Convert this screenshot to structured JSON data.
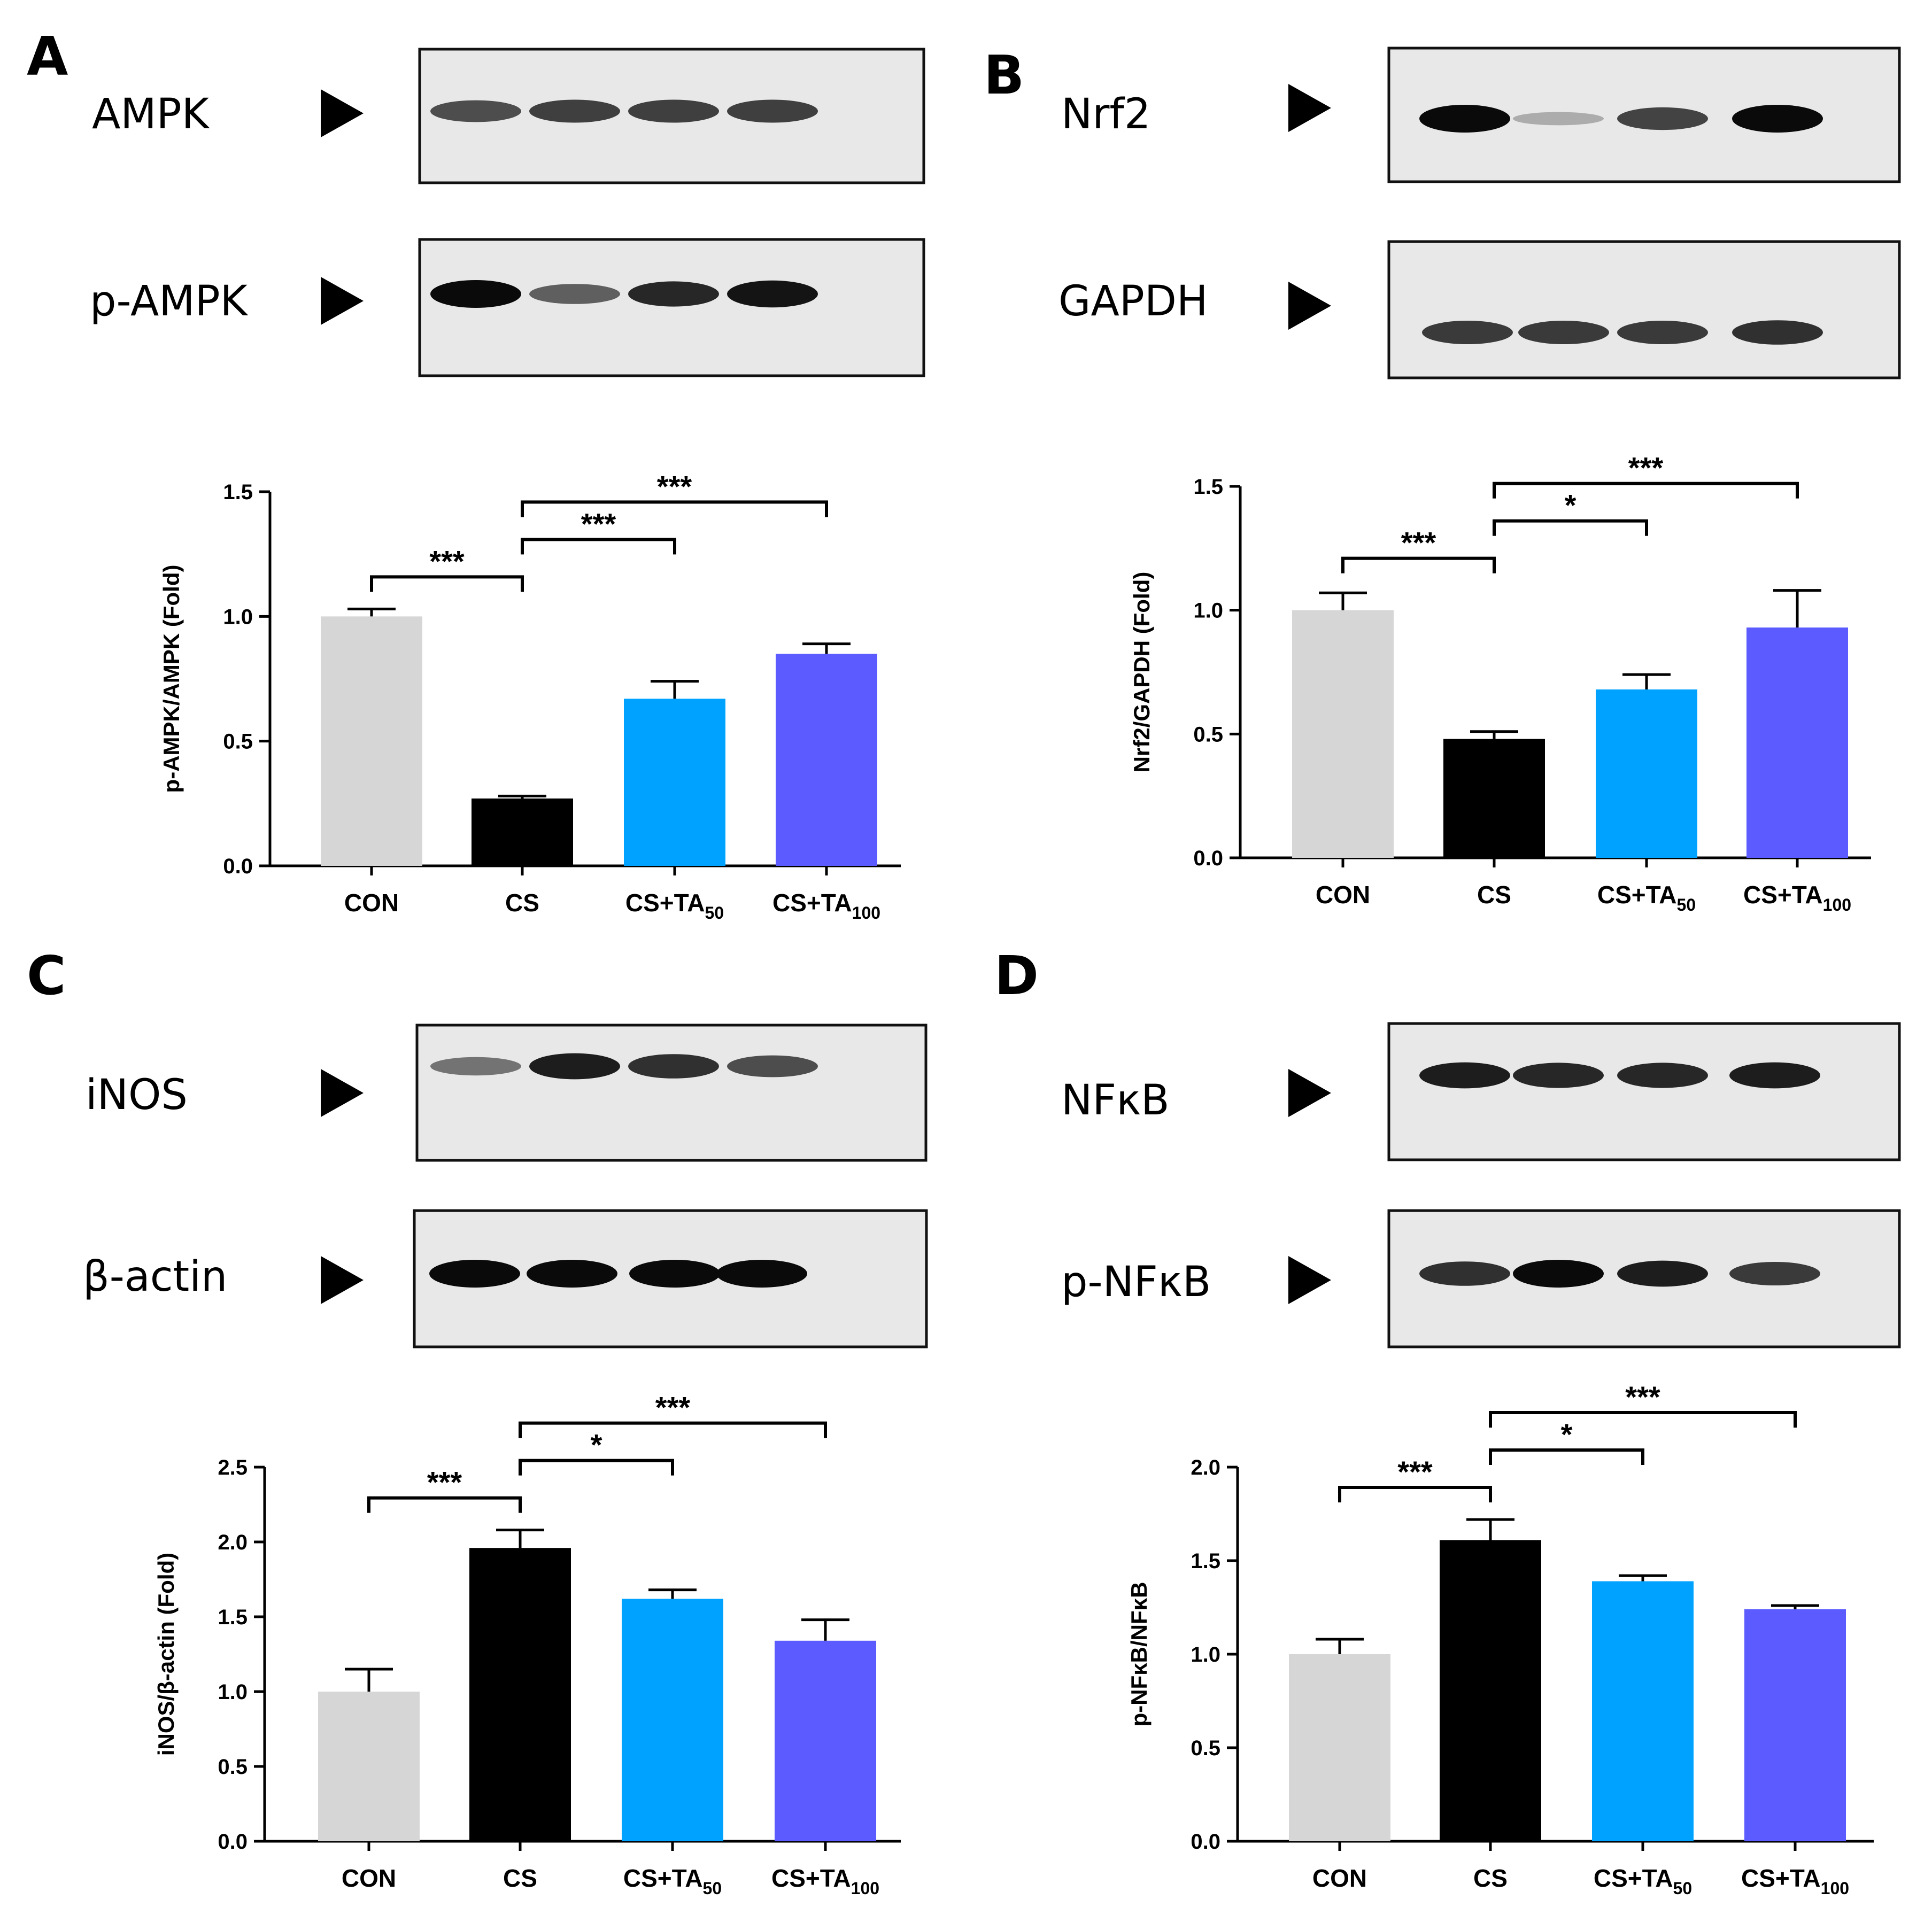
{
  "colors": {
    "CON": "#d6d6d6",
    "CS": "#000000",
    "CS+TA50": "#00a2ff",
    "CS+TA100": "#5b5bff"
  },
  "chart_data": [
    {
      "panel": "A",
      "type": "bar",
      "blots": [
        {
          "label": "AMPK",
          "bands": [
            0.65,
            0.72,
            0.72,
            0.72
          ]
        },
        {
          "label": "p-AMPK",
          "bands": [
            1.0,
            0.55,
            0.85,
            0.95
          ]
        }
      ],
      "categories": [
        {
          "main": "CON",
          "sub": ""
        },
        {
          "main": "CS",
          "sub": ""
        },
        {
          "main": "CS+TA",
          "sub": "50"
        },
        {
          "main": "CS+TA",
          "sub": "100"
        }
      ],
      "values": [
        1.0,
        0.27,
        0.67,
        0.85
      ],
      "errors": [
        0.03,
        0.01,
        0.07,
        0.04
      ],
      "ylabel": "p-AMPK/AMPK (Fold)",
      "ylim": [
        0,
        1.5
      ],
      "yticks": [
        "0.0",
        "0.5",
        "1.0",
        "1.5"
      ],
      "significance": [
        {
          "from": 0,
          "to": 1,
          "label": "***"
        },
        {
          "from": 1,
          "to": 2,
          "label": "***"
        },
        {
          "from": 1,
          "to": 3,
          "label": "***"
        }
      ]
    },
    {
      "panel": "B",
      "type": "bar",
      "blots": [
        {
          "label": "Nrf2",
          "bands": [
            1.0,
            0.15,
            0.7,
            1.0
          ]
        },
        {
          "label": "GAPDH",
          "bands": [
            0.75,
            0.75,
            0.75,
            0.8
          ]
        }
      ],
      "categories": [
        {
          "main": "CON",
          "sub": ""
        },
        {
          "main": "CS",
          "sub": ""
        },
        {
          "main": "CS+TA",
          "sub": "50"
        },
        {
          "main": "CS+TA",
          "sub": "100"
        }
      ],
      "values": [
        1.0,
        0.48,
        0.68,
        0.93
      ],
      "errors": [
        0.07,
        0.03,
        0.06,
        0.15
      ],
      "ylabel": "Nrf2/GAPDH (Fold)",
      "ylim": [
        0,
        1.5
      ],
      "yticks": [
        "0.0",
        "0.5",
        "1.0",
        "1.5"
      ],
      "significance": [
        {
          "from": 0,
          "to": 1,
          "label": "***"
        },
        {
          "from": 1,
          "to": 2,
          "label": "*"
        },
        {
          "from": 1,
          "to": 3,
          "label": "***"
        }
      ]
    },
    {
      "panel": "C",
      "type": "bar",
      "blots": [
        {
          "label": "iNOS",
          "bands": [
            0.45,
            0.9,
            0.8,
            0.65
          ]
        },
        {
          "label": "β-actin",
          "bands": [
            1.0,
            1.0,
            1.0,
            1.0
          ]
        }
      ],
      "categories": [
        {
          "main": "CON",
          "sub": ""
        },
        {
          "main": "CS",
          "sub": ""
        },
        {
          "main": "CS+TA",
          "sub": "50"
        },
        {
          "main": "CS+TA",
          "sub": "100"
        }
      ],
      "values": [
        1.0,
        1.96,
        1.62,
        1.34
      ],
      "errors": [
        0.15,
        0.12,
        0.06,
        0.14
      ],
      "ylabel": "iNOS/β-actin (Fold)",
      "ylim": [
        0,
        2.5
      ],
      "yticks": [
        "0.0",
        "0.5",
        "1.0",
        "1.5",
        "2.0",
        "2.5"
      ],
      "significance": [
        {
          "from": 0,
          "to": 1,
          "label": "***"
        },
        {
          "from": 1,
          "to": 2,
          "label": "*"
        },
        {
          "from": 1,
          "to": 3,
          "label": "***"
        }
      ]
    },
    {
      "panel": "D",
      "type": "bar",
      "blots": [
        {
          "label": "NFκB",
          "bands": [
            0.9,
            0.85,
            0.85,
            0.9
          ]
        },
        {
          "label": "p-NFκB",
          "bands": [
            0.8,
            1.0,
            0.9,
            0.75
          ]
        }
      ],
      "categories": [
        {
          "main": "CON",
          "sub": ""
        },
        {
          "main": "CS",
          "sub": ""
        },
        {
          "main": "CS+TA",
          "sub": "50"
        },
        {
          "main": "CS+TA",
          "sub": "100"
        }
      ],
      "values": [
        1.0,
        1.61,
        1.39,
        1.24
      ],
      "errors": [
        0.08,
        0.11,
        0.03,
        0.02
      ],
      "ylabel": "p-NFκB/NFκB",
      "ylim": [
        0,
        2.0
      ],
      "yticks": [
        "0.0",
        "0.5",
        "1.0",
        "1.5",
        "2.0"
      ],
      "significance": [
        {
          "from": 0,
          "to": 1,
          "label": "***"
        },
        {
          "from": 1,
          "to": 2,
          "label": "*"
        },
        {
          "from": 1,
          "to": 3,
          "label": "***"
        }
      ]
    }
  ]
}
